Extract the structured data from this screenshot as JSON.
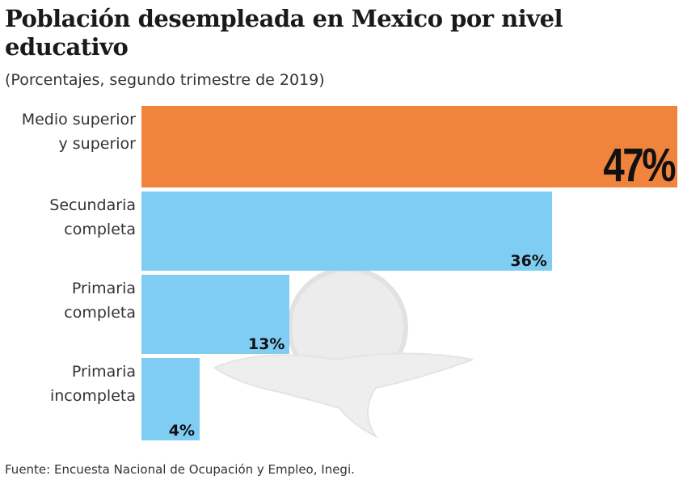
{
  "chart_data": {
    "type": "bar",
    "orientation": "horizontal",
    "title": "Población desempleada en Mexico por nivel educativo",
    "subtitle": "(Porcentajes, segundo trimestre de 2019)",
    "categories": [
      "Medio superior y superior",
      "Secundaria completa",
      "Primaria completa",
      "Primaria incompleta"
    ],
    "category_lines": [
      [
        "Medio superior",
        "y superior"
      ],
      [
        "Secundaria",
        "completa"
      ],
      [
        "Primaria",
        "completa"
      ],
      [
        "Primaria",
        "incompleta"
      ]
    ],
    "values": [
      47,
      36,
      13,
      4
    ],
    "value_labels": [
      "47%",
      "36%",
      "13%",
      "4%"
    ],
    "colors": [
      "#f0843c",
      "#80cdf4",
      "#80cdf4",
      "#80cdf4"
    ],
    "highlight_index": 0,
    "xlim": [
      0,
      47
    ],
    "grid": false,
    "source": "Fuente: Encuesta Nacional de Ocupación y Empleo, Inegi."
  }
}
